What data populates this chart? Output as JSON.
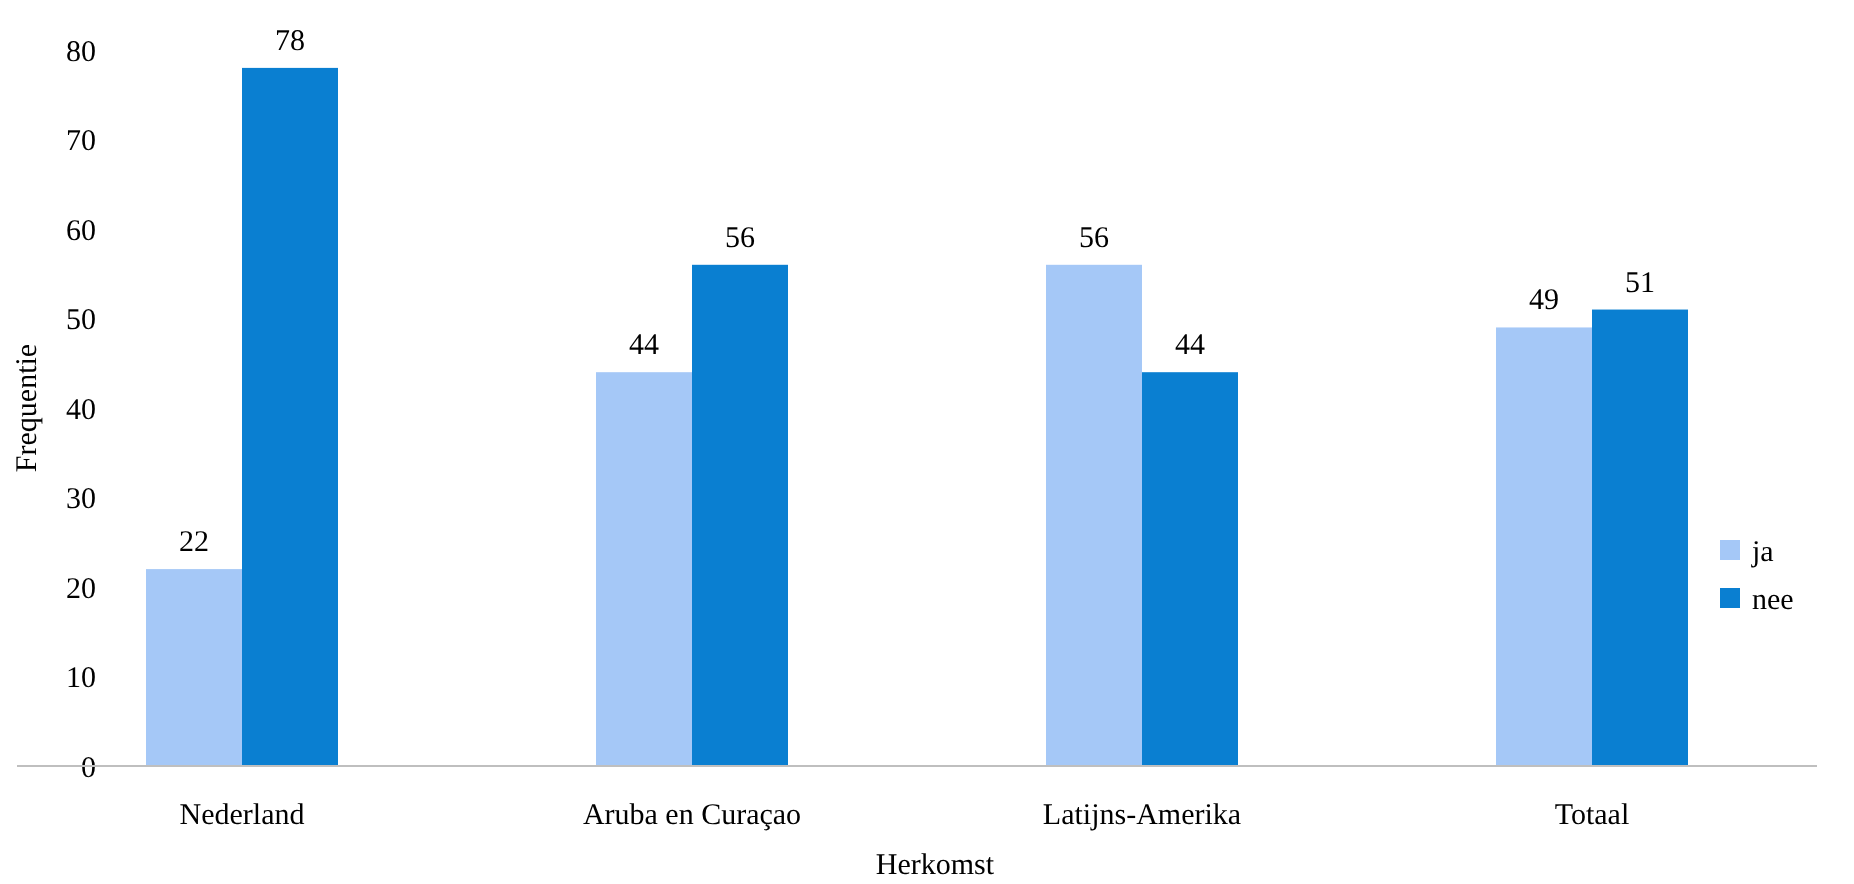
{
  "chart_data": {
    "type": "bar",
    "xlabel": "Herkomst",
    "ylabel": "Frequentie",
    "categories": [
      "Nederland",
      "Aruba en Curaçao",
      "Latijns-Amerika",
      "Totaal"
    ],
    "series": [
      {
        "name": "ja",
        "color": "#a5c8f7",
        "values": [
          22,
          44,
          56,
          49
        ]
      },
      {
        "name": "nee",
        "color": "#0a7fd1",
        "values": [
          78,
          56,
          44,
          51
        ]
      }
    ],
    "ylim": [
      0,
      80
    ],
    "yticks": [
      0,
      10,
      20,
      30,
      40,
      50,
      60,
      70,
      80
    ],
    "data_labels": true,
    "legend": "right",
    "grid": false
  }
}
